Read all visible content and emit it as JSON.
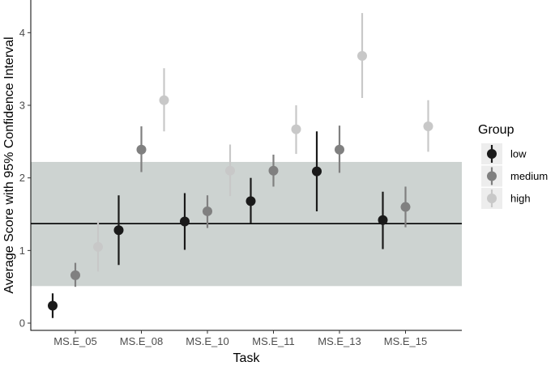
{
  "chart_data": {
    "type": "scatter",
    "subtype": "point-range with error bars",
    "categories": [
      "MS.E_05",
      "MS.E_08",
      "MS.E_10",
      "MS.E_11",
      "MS.E_13",
      "MS.E_15"
    ],
    "xlabel": "Task",
    "ylabel": "Average Score with 95% Confidence Interval",
    "ylim": [
      -0.1,
      4.45
    ],
    "yticks": [
      0,
      1,
      2,
      3,
      4
    ],
    "grid": false,
    "legend": {
      "title": "Group",
      "placement": "right"
    },
    "reference_line": {
      "y": 1.37,
      "color": "#000000"
    },
    "reference_band": {
      "ymin": 0.51,
      "ymax": 2.22,
      "color": "#cdd3d1"
    },
    "series": [
      {
        "name": "low",
        "color": "#1a1a1a",
        "values": [
          0.24,
          1.28,
          1.4,
          1.68,
          2.09,
          1.42
        ],
        "lower": [
          0.07,
          0.8,
          1.01,
          1.37,
          1.54,
          1.02
        ],
        "upper": [
          0.41,
          1.76,
          1.79,
          2.0,
          2.64,
          1.81
        ]
      },
      {
        "name": "medium",
        "color": "#808080",
        "values": [
          0.66,
          2.39,
          1.54,
          2.1,
          2.39,
          1.6
        ],
        "lower": [
          0.5,
          2.08,
          1.31,
          1.88,
          2.07,
          1.32
        ],
        "upper": [
          0.83,
          2.71,
          1.76,
          2.32,
          2.72,
          1.88
        ]
      },
      {
        "name": "high",
        "color": "#c8c8c8",
        "values": [
          1.05,
          3.07,
          2.1,
          2.67,
          3.68,
          2.71
        ],
        "lower": [
          0.71,
          2.64,
          1.75,
          2.33,
          3.1,
          2.36
        ],
        "upper": [
          1.41,
          3.51,
          2.46,
          3.0,
          4.27,
          3.07
        ]
      }
    ]
  }
}
